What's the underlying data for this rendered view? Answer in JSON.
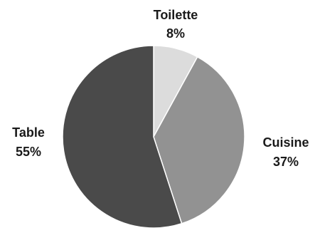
{
  "chart_data": {
    "type": "pie",
    "title": "",
    "start_angle": "12 o'clock, clockwise",
    "slices": [
      {
        "label": "Toilette",
        "value": 8,
        "value_label": "8%",
        "color": "#dcdcdc"
      },
      {
        "label": "Cuisine",
        "value": 37,
        "value_label": "37%",
        "color": "#929292"
      },
      {
        "label": "Table",
        "value": 55,
        "value_label": "55%",
        "color": "#4a4a4a"
      }
    ],
    "slice_border_color": "#ffffff",
    "label_color": "#1a1a1a"
  }
}
